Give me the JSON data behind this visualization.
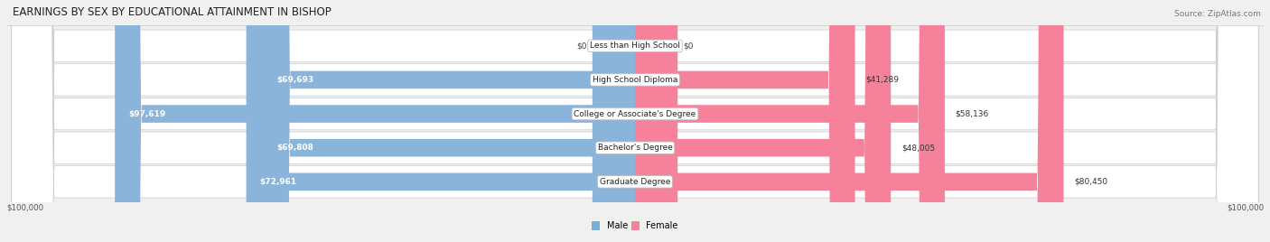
{
  "title": "EARNINGS BY SEX BY EDUCATIONAL ATTAINMENT IN BISHOP",
  "source": "Source: ZipAtlas.com",
  "categories": [
    "Less than High School",
    "High School Diploma",
    "College or Associate's Degree",
    "Bachelor's Degree",
    "Graduate Degree"
  ],
  "male_values": [
    0,
    69693,
    97619,
    69808,
    72961
  ],
  "female_values": [
    0,
    41289,
    58136,
    48005,
    80450
  ],
  "male_labels": [
    "$0",
    "$69,693",
    "$97,619",
    "$69,808",
    "$72,961"
  ],
  "female_labels": [
    "$0",
    "$41,289",
    "$58,136",
    "$48,005",
    "$80,450"
  ],
  "male_color": "#8ab4d9",
  "female_color": "#f5819b",
  "male_color_legend": "#7aaed4",
  "female_color_legend": "#f5819b",
  "max_value": 100000,
  "stub_value": 8000,
  "title_fontsize": 8.5,
  "source_fontsize": 6.5,
  "label_fontsize": 6.5,
  "cat_fontsize": 6.5,
  "axis_label": "$100,000",
  "background_color": "#f0f0f0",
  "row_colors": [
    "#e8e8e8",
    "#f5f5f5",
    "#e8e8e8",
    "#f5f5f5",
    "#e8e8e8"
  ],
  "row_light": "#f8f8f8",
  "row_dark": "#ececec"
}
